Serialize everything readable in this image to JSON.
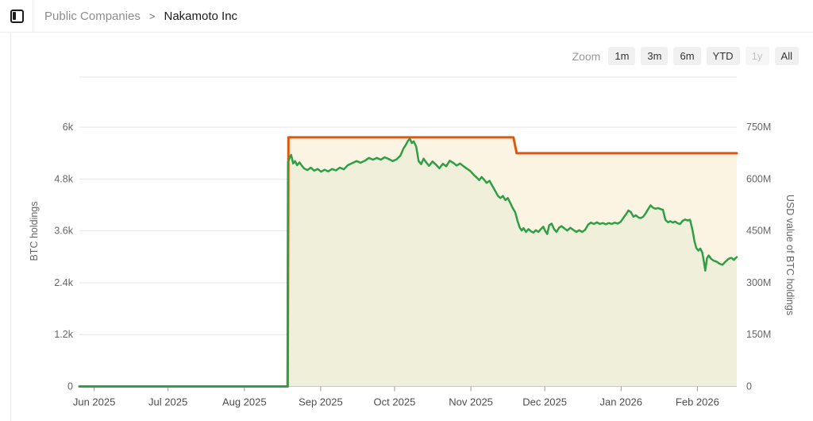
{
  "header": {
    "breadcrumb": {
      "section": "Public Companies",
      "separator": ">",
      "current": "Nakamoto Inc"
    }
  },
  "range_selector": {
    "zoom_label": "Zoom",
    "buttons": [
      {
        "label": "1m"
      },
      {
        "label": "3m"
      },
      {
        "label": "6m"
      },
      {
        "label": "YTD"
      },
      {
        "label": "1y",
        "disabled": true
      },
      {
        "label": "All"
      }
    ]
  },
  "colors": {
    "btc_line": "#e2550d",
    "btc_fill": "#fbf4e2",
    "usd_line": "#2f9e44",
    "usd_fill": "#f0f0da",
    "gridline": "#e7e7e7",
    "axis_line": "#c9c9c9",
    "tick_mark": "#999999",
    "tick_label": "#666666",
    "axis_title": "#666666",
    "month_label": "#4d4d4d"
  },
  "chart_data": {
    "type": "line",
    "title": "",
    "x_axis": {
      "unit": "days since 2025-06-01",
      "min": -6,
      "max": 261,
      "ticks": [
        {
          "day": 0,
          "label": "Jun 2025"
        },
        {
          "day": 30,
          "label": "Jul 2025"
        },
        {
          "day": 61,
          "label": "Aug 2025"
        },
        {
          "day": 92,
          "label": "Sep 2025"
        },
        {
          "day": 122,
          "label": "Oct 2025"
        },
        {
          "day": 153,
          "label": "Nov 2025"
        },
        {
          "day": 183,
          "label": "Dec 2025"
        },
        {
          "day": 214,
          "label": "Jan 2026"
        },
        {
          "day": 245,
          "label": "Feb 2026"
        }
      ]
    },
    "y_axis_left": {
      "title": "BTC holdings",
      "min": 0,
      "max": 7160,
      "ticks": [
        {
          "value": 0,
          "label": "0"
        },
        {
          "value": 1200,
          "label": "1.2k"
        },
        {
          "value": 2400,
          "label": "2.4k"
        },
        {
          "value": 3600,
          "label": "3.6k"
        },
        {
          "value": 4800,
          "label": "4.8k"
        },
        {
          "value": 6000,
          "label": "6k"
        }
      ]
    },
    "y_axis_right": {
      "title": "USD value of BTC holdings",
      "min": 0,
      "max": 895,
      "ticks": [
        {
          "value": 0,
          "label": "0"
        },
        {
          "value": 150,
          "label": "150M"
        },
        {
          "value": 300,
          "label": "300M"
        },
        {
          "value": 450,
          "label": "450M"
        },
        {
          "value": 600,
          "label": "600M"
        },
        {
          "value": 750,
          "label": "750M"
        }
      ]
    },
    "series": [
      {
        "name": "BTC holdings",
        "axis": "left",
        "unit": "BTC",
        "shape": "step",
        "points": [
          [
            -6,
            0
          ],
          [
            78.6,
            0
          ],
          [
            78.9,
            5765
          ],
          [
            170.3,
            5765
          ],
          [
            171.6,
            5398
          ],
          [
            261,
            5398
          ]
        ]
      },
      {
        "name": "USD value of BTC holdings",
        "axis": "right",
        "unit": "USD millions",
        "shape": "line",
        "points": [
          [
            -6,
            0
          ],
          [
            78.5,
            0
          ],
          [
            78.7,
            648
          ],
          [
            79.3,
            660
          ],
          [
            80,
            670
          ],
          [
            80.8,
            645
          ],
          [
            81.6,
            652
          ],
          [
            82.4,
            640
          ],
          [
            83.4,
            648
          ],
          [
            84.4,
            638
          ],
          [
            85.4,
            630
          ],
          [
            86.6,
            626
          ],
          [
            88,
            633
          ],
          [
            89.4,
            624
          ],
          [
            90.8,
            629
          ],
          [
            92.2,
            621
          ],
          [
            93.6,
            627
          ],
          [
            95,
            622
          ],
          [
            96.6,
            629
          ],
          [
            98.2,
            625
          ],
          [
            99.8,
            633
          ],
          [
            101.4,
            628
          ],
          [
            103,
            640
          ],
          [
            104.8,
            646
          ],
          [
            106.6,
            652
          ],
          [
            108.2,
            647
          ],
          [
            110,
            653
          ],
          [
            111.6,
            661
          ],
          [
            113.2,
            656
          ],
          [
            114.8,
            661
          ],
          [
            116.4,
            656
          ],
          [
            118,
            663
          ],
          [
            119.6,
            658
          ],
          [
            121.2,
            652
          ],
          [
            122.8,
            657
          ],
          [
            124.4,
            668
          ],
          [
            125.6,
            688
          ],
          [
            126.6,
            699
          ],
          [
            127.4,
            710
          ],
          [
            128.2,
            717
          ],
          [
            129,
            704
          ],
          [
            129.8,
            709
          ],
          [
            130.8,
            694
          ],
          [
            131.8,
            652
          ],
          [
            132.8,
            643
          ],
          [
            133.8,
            659
          ],
          [
            134.8,
            649
          ],
          [
            136,
            638
          ],
          [
            137.4,
            651
          ],
          [
            138.8,
            642
          ],
          [
            140.2,
            631
          ],
          [
            141.6,
            644
          ],
          [
            143,
            637
          ],
          [
            144.4,
            653
          ],
          [
            145.8,
            647
          ],
          [
            147.2,
            639
          ],
          [
            148.6,
            645
          ],
          [
            150,
            637
          ],
          [
            151.4,
            630
          ],
          [
            152.8,
            623
          ],
          [
            154.2,
            612
          ],
          [
            155.4,
            604
          ],
          [
            156.4,
            597
          ],
          [
            157.4,
            606
          ],
          [
            158.4,
            598
          ],
          [
            159.4,
            589
          ],
          [
            160.6,
            595
          ],
          [
            161.8,
            579
          ],
          [
            163,
            564
          ],
          [
            164,
            551
          ],
          [
            165,
            545
          ],
          [
            166,
            551
          ],
          [
            167,
            539
          ],
          [
            168,
            545
          ],
          [
            169,
            531
          ],
          [
            170,
            516
          ],
          [
            171,
            504
          ],
          [
            172,
            478
          ],
          [
            172.8,
            460
          ],
          [
            173.6,
            451
          ],
          [
            174.4,
            458
          ],
          [
            175.4,
            447
          ],
          [
            176.4,
            455
          ],
          [
            177.4,
            449
          ],
          [
            178.4,
            445
          ],
          [
            179.4,
            452
          ],
          [
            180.4,
            447
          ],
          [
            181.4,
            455
          ],
          [
            182.4,
            462
          ],
          [
            183.2,
            450
          ],
          [
            184,
            441
          ],
          [
            184.8,
            466
          ],
          [
            185.8,
            471
          ],
          [
            186.8,
            455
          ],
          [
            187.8,
            447
          ],
          [
            188.8,
            459
          ],
          [
            189.8,
            464
          ],
          [
            191,
            457
          ],
          [
            192.2,
            451
          ],
          [
            193.4,
            459
          ],
          [
            194.6,
            453
          ],
          [
            195.8,
            447
          ],
          [
            197,
            452
          ],
          [
            198.2,
            447
          ],
          [
            199.4,
            453
          ],
          [
            200.6,
            468
          ],
          [
            201.8,
            474
          ],
          [
            203,
            470
          ],
          [
            204.2,
            475
          ],
          [
            205.4,
            470
          ],
          [
            206.6,
            473
          ],
          [
            207.8,
            469
          ],
          [
            209,
            473
          ],
          [
            210.2,
            470
          ],
          [
            211.4,
            474
          ],
          [
            212.6,
            471
          ],
          [
            213.8,
            476
          ],
          [
            215,
            488
          ],
          [
            216,
            498
          ],
          [
            217,
            509
          ],
          [
            218,
            504
          ],
          [
            219,
            491
          ],
          [
            220,
            495
          ],
          [
            221,
            489
          ],
          [
            222,
            487
          ],
          [
            223,
            491
          ],
          [
            224,
            501
          ],
          [
            225,
            513
          ],
          [
            226,
            524
          ],
          [
            227,
            517
          ],
          [
            228,
            514
          ],
          [
            229,
            516
          ],
          [
            230,
            513
          ],
          [
            231,
            511
          ],
          [
            232,
            482
          ],
          [
            233,
            475
          ],
          [
            234,
            478
          ],
          [
            235,
            474
          ],
          [
            236,
            477
          ],
          [
            237,
            472
          ],
          [
            238,
            470
          ],
          [
            239,
            479
          ],
          [
            240,
            483
          ],
          [
            241,
            480
          ],
          [
            242,
            482
          ],
          [
            243,
            453
          ],
          [
            243.8,
            420
          ],
          [
            244.6,
            400
          ],
          [
            245.4,
            393
          ],
          [
            246.2,
            399
          ],
          [
            247,
            387
          ],
          [
            247.7,
            358
          ],
          [
            248.2,
            335
          ],
          [
            248.9,
            371
          ],
          [
            249.6,
            379
          ],
          [
            250.6,
            369
          ],
          [
            251.6,
            364
          ],
          [
            252.8,
            361
          ],
          [
            254,
            355
          ],
          [
            255.2,
            352
          ],
          [
            256.4,
            361
          ],
          [
            257.6,
            369
          ],
          [
            258.8,
            372
          ],
          [
            259.8,
            366
          ],
          [
            260.5,
            371
          ],
          [
            261,
            374
          ]
        ]
      }
    ],
    "legend": {
      "visible": false
    },
    "grid": true
  }
}
